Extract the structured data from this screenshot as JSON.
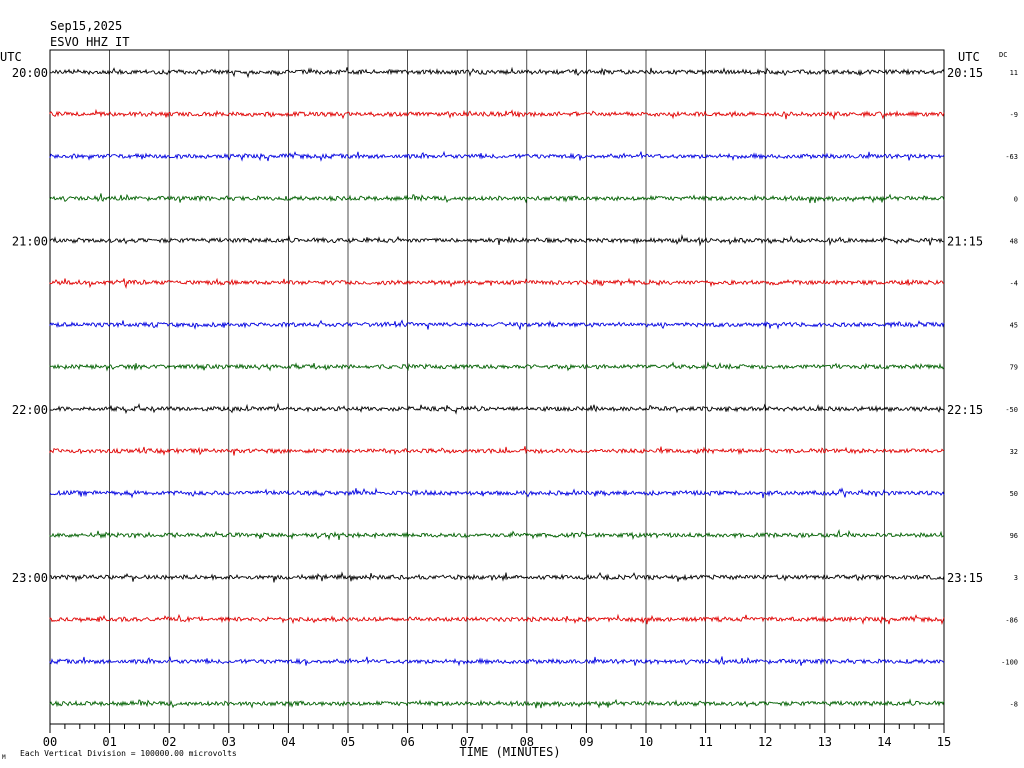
{
  "header": {
    "date": "Sep15,2025",
    "station": "ESVO HHZ IT"
  },
  "chart_data": {
    "type": "line",
    "utc_label_left": "UTC",
    "utc_label_right": "UTC",
    "dc_label": "DC",
    "xlabel": "TIME (MINUTES)",
    "xlim": [
      0,
      15
    ],
    "x_ticks": [
      "00",
      "01",
      "02",
      "03",
      "04",
      "05",
      "06",
      "07",
      "08",
      "09",
      "10",
      "11",
      "12",
      "13",
      "14",
      "15"
    ],
    "colors": [
      "#000000",
      "#e00000",
      "#0000e0",
      "#006000"
    ],
    "hour_labels_left": [
      {
        "row": 0,
        "text": "20:00"
      },
      {
        "row": 4,
        "text": "21:00"
      },
      {
        "row": 8,
        "text": "22:00"
      },
      {
        "row": 12,
        "text": "23:00"
      }
    ],
    "hour_labels_right": [
      {
        "row": 0,
        "text": "20:15"
      },
      {
        "row": 4,
        "text": "21:15"
      },
      {
        "row": 8,
        "text": "22:15"
      },
      {
        "row": 12,
        "text": "23:15"
      }
    ],
    "dc_offsets": [
      "11",
      "-9",
      "-63",
      "0",
      "48",
      "-4",
      "45",
      "79",
      "-50",
      "32",
      "50",
      "96",
      "3",
      "-86",
      "-100",
      "-8"
    ],
    "scale_note": "Each Vertical Division = 100000.00 microvolts"
  },
  "footer_mark": "M"
}
